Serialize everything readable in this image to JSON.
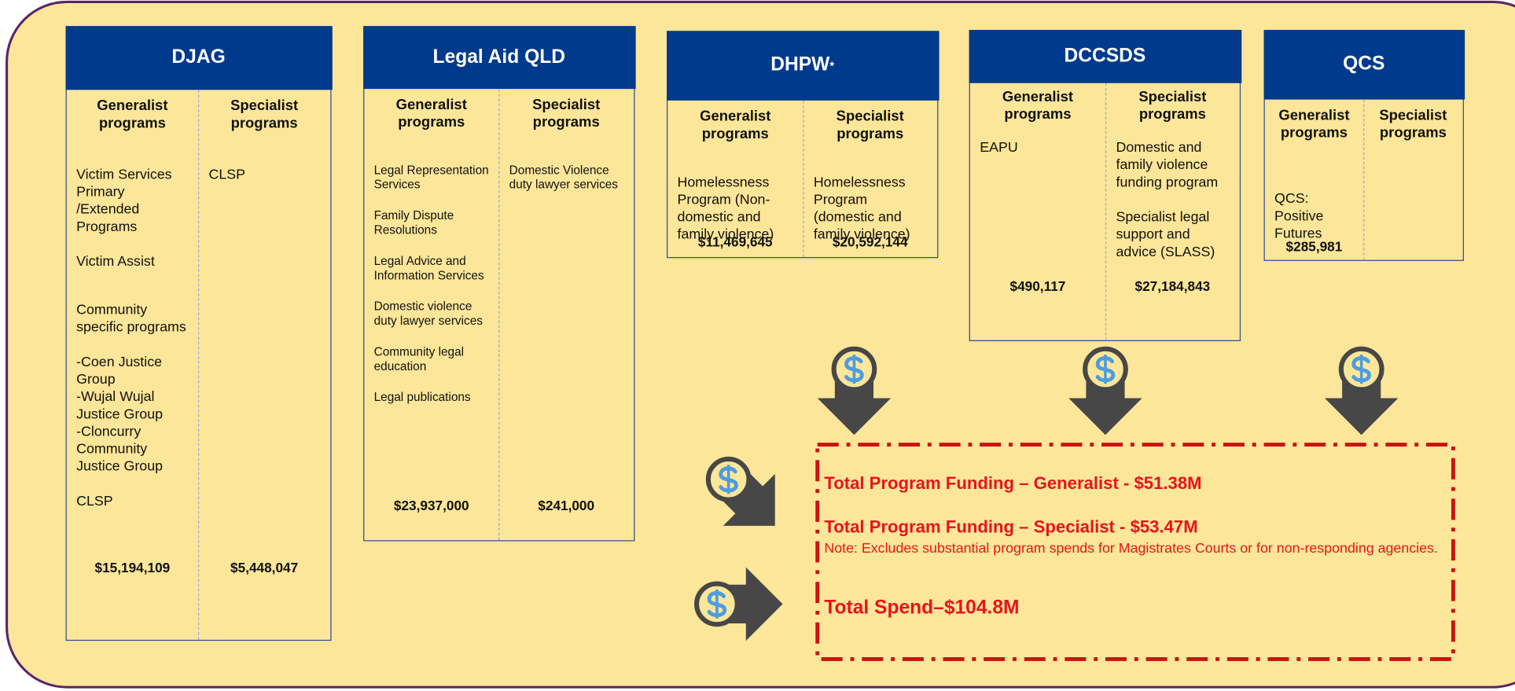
{
  "agencies": [
    {
      "name": "DJAG",
      "generalist_header": "Generalist programs",
      "specialist_header": "Specialist programs",
      "generalist_items": [
        "Victim Services Primary /Extended Programs",
        "Victim Assist",
        "Community specific programs",
        "-Coen Justice Group\n-Wujal Wujal Justice Group\n-Cloncurry Community Justice Group",
        "CLSP"
      ],
      "specialist_items": [
        "CLSP"
      ],
      "generalist_total": "$15,194,109",
      "specialist_total": "$5,448,047"
    },
    {
      "name": "Legal Aid QLD",
      "generalist_header": "Generalist programs",
      "specialist_header": "Specialist programs",
      "generalist_items": [
        "Legal Representation Services",
        "Family Dispute Resolutions",
        "Legal Advice and Information Services",
        "Domestic violence duty lawyer services",
        "Community legal education",
        "Legal publications"
      ],
      "specialist_items": [
        "Domestic Violence duty lawyer services"
      ],
      "generalist_total": "$23,937,000",
      "specialist_total": "$241,000"
    },
    {
      "name": "DHPW",
      "name_mark": "*",
      "generalist_header": "Generalist programs",
      "specialist_header": "Specialist programs",
      "generalist_items": [
        "Homelessness Program (Non-domestic and family violence)"
      ],
      "specialist_items": [
        "Homelessness Program (domestic and family violence)"
      ],
      "generalist_total": "$11,469,645",
      "specialist_total": "$20,592,144"
    },
    {
      "name": "DCCSDS",
      "generalist_header": "Generalist programs",
      "specialist_header": "Specialist programs",
      "generalist_items": [
        "EAPU"
      ],
      "specialist_items": [
        "Domestic and family violence funding program",
        "Specialist legal support and advice (SLASS)"
      ],
      "generalist_total": "$490,117",
      "specialist_total": "$27,184,843"
    },
    {
      "name": "QCS",
      "generalist_header": "Generalist programs",
      "specialist_header": "Specialist programs",
      "generalist_items": [
        "QCS: Positive Futures"
      ],
      "specialist_items": [],
      "generalist_total": "$285,981"
    }
  ],
  "summary": {
    "generalist": "Total Program Funding – Generalist - $51.38M",
    "specialist": "Total Program Funding – Specialist -  $53.47M",
    "note": "Note: Excludes substantial program spends for Magistrates Courts or for non-responding agencies.",
    "total": "Total Spend–$104.8M"
  }
}
